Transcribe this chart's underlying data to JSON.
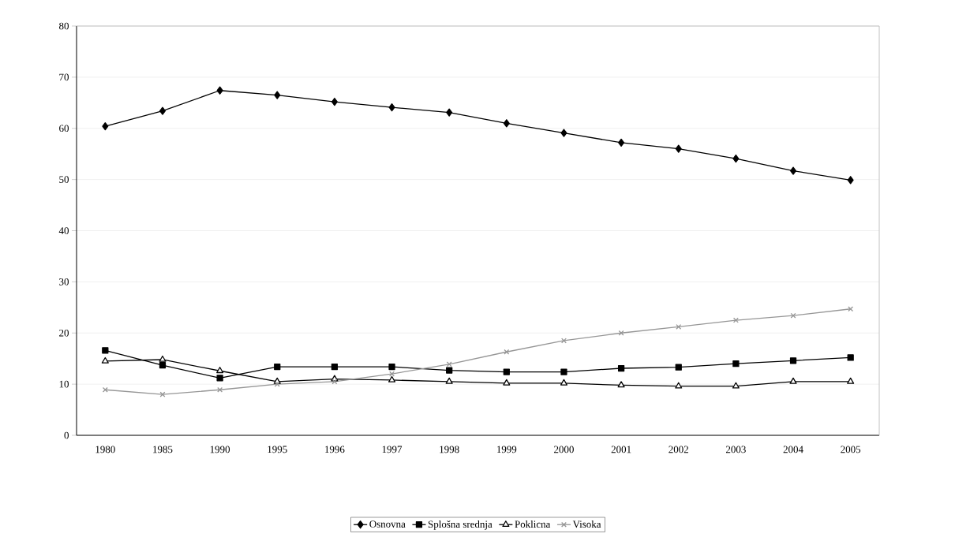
{
  "chart_data": {
    "type": "line",
    "categories": [
      "1980",
      "1985",
      "1990",
      "1995",
      "1996",
      "1997",
      "1998",
      "1999",
      "2000",
      "2001",
      "2002",
      "2003",
      "2004",
      "2005"
    ],
    "series": [
      {
        "name": "Osnovna",
        "color": "#000000",
        "marker": "diamond",
        "values": [
          60.4,
          63.4,
          67.4,
          66.5,
          65.2,
          64.1,
          63.1,
          61.0,
          59.1,
          57.2,
          56.0,
          54.1,
          51.7,
          49.9
        ]
      },
      {
        "name": "Splošna srednja",
        "color": "#000000",
        "marker": "square",
        "values": [
          16.6,
          13.7,
          11.2,
          13.4,
          13.4,
          13.4,
          12.7,
          12.4,
          12.4,
          13.1,
          13.3,
          14.0,
          14.6,
          15.2
        ]
      },
      {
        "name": "Poklicna",
        "color": "#000000",
        "marker": "triangle",
        "values": [
          14.5,
          14.8,
          12.6,
          10.5,
          11.0,
          10.8,
          10.5,
          10.2,
          10.2,
          9.8,
          9.6,
          9.6,
          10.5,
          10.5
        ]
      },
      {
        "name": "Visoka",
        "color": "#969696",
        "marker": "cross",
        "values": [
          8.9,
          8.0,
          8.9,
          10.0,
          10.5,
          12.0,
          13.9,
          16.3,
          18.5,
          20.0,
          21.2,
          22.5,
          23.4,
          24.7
        ]
      }
    ],
    "ylim": [
      0,
      80
    ],
    "yticks": [
      0,
      10,
      20,
      30,
      40,
      50,
      60,
      70,
      80
    ],
    "grid": "y",
    "legend": "bottom"
  }
}
